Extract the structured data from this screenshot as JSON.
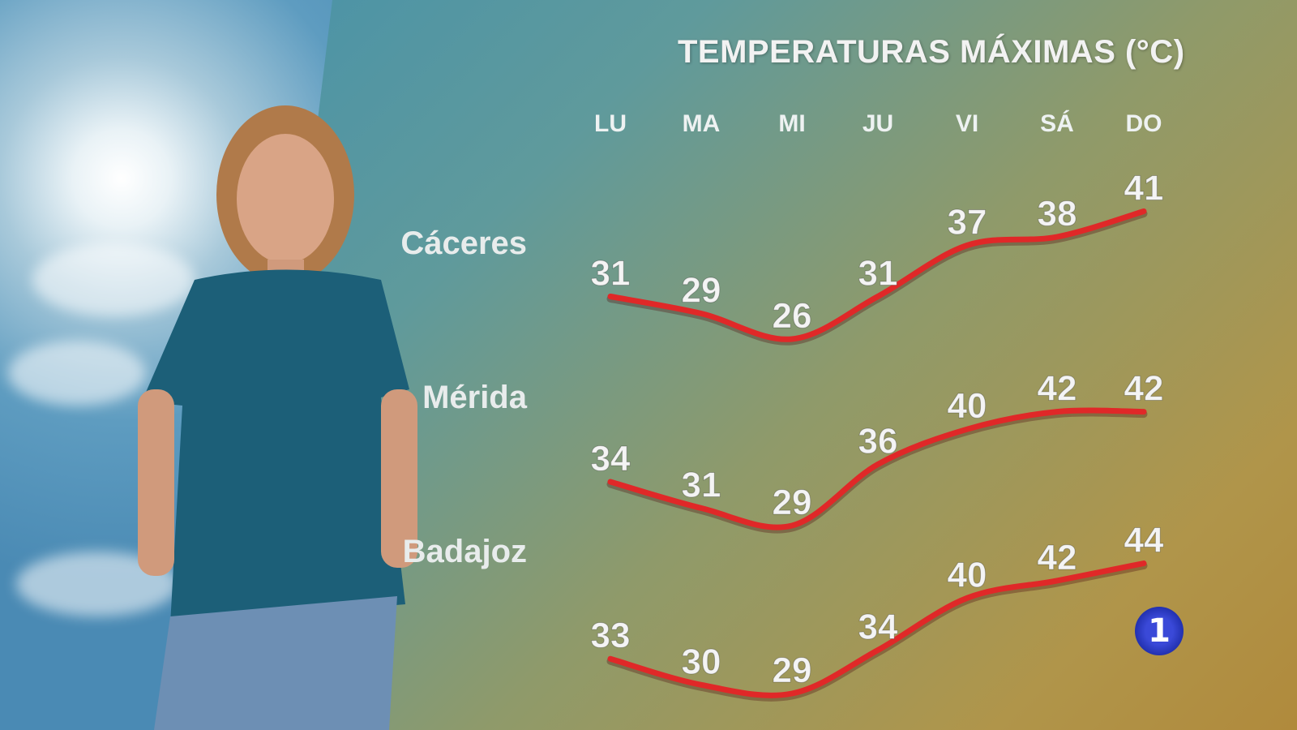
{
  "chart_data": {
    "type": "line",
    "title": "TEMPERATURAS MÁXIMAS (°C)",
    "categories": [
      "LU",
      "MA",
      "MI",
      "JU",
      "VI",
      "SÁ",
      "DO"
    ],
    "series": [
      {
        "name": "Cáceres",
        "values": [
          31,
          29,
          26,
          31,
          37,
          38,
          41
        ]
      },
      {
        "name": "Mérida",
        "values": [
          34,
          31,
          29,
          36,
          40,
          42,
          42
        ]
      },
      {
        "name": "Badajoz",
        "values": [
          33,
          30,
          29,
          34,
          40,
          42,
          44
        ]
      }
    ],
    "line_color": "#e02828",
    "label_color": "#f4f4f4"
  },
  "logo": {
    "text": "1",
    "color": "#2f3ed0"
  }
}
